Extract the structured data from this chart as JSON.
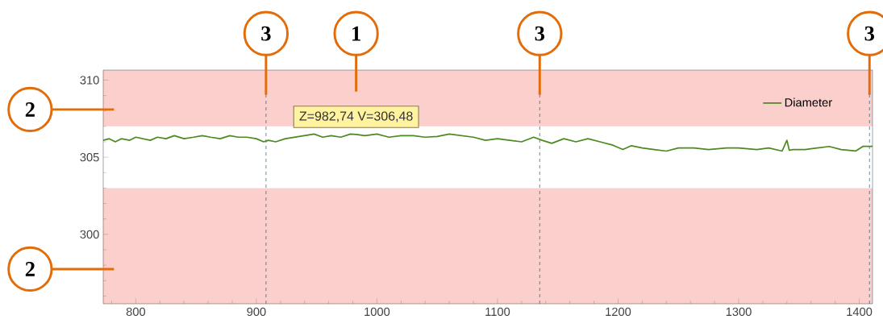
{
  "chart_data": {
    "type": "line",
    "x": [
      773,
      778,
      783,
      788,
      795,
      800,
      806,
      812,
      818,
      825,
      832,
      840,
      848,
      855,
      862,
      870,
      878,
      885,
      892,
      900,
      906,
      910,
      916,
      924,
      932,
      940,
      948,
      955,
      962,
      970,
      978,
      983,
      990,
      1000,
      1010,
      1020,
      1030,
      1040,
      1050,
      1060,
      1070,
      1080,
      1090,
      1100,
      1110,
      1120,
      1130,
      1137,
      1145,
      1155,
      1165,
      1175,
      1185,
      1195,
      1204,
      1211,
      1220,
      1230,
      1240,
      1250,
      1263,
      1275,
      1290,
      1300,
      1315,
      1325,
      1336,
      1340,
      1342,
      1345,
      1355,
      1365,
      1375,
      1385,
      1397,
      1403,
      1411
    ],
    "series": [
      {
        "name": "Diameter",
        "color": "#4a8a1e",
        "values": [
          306.1,
          306.2,
          306.0,
          306.2,
          306.1,
          306.3,
          306.2,
          306.1,
          306.3,
          306.2,
          306.4,
          306.2,
          306.3,
          306.4,
          306.3,
          306.2,
          306.4,
          306.3,
          306.3,
          306.2,
          306.0,
          306.1,
          306.0,
          306.2,
          306.3,
          306.4,
          306.5,
          306.3,
          306.4,
          306.3,
          306.5,
          306.48,
          306.4,
          306.5,
          306.3,
          306.4,
          306.4,
          306.3,
          306.35,
          306.5,
          306.4,
          306.3,
          306.1,
          306.2,
          306.1,
          306.0,
          306.3,
          306.1,
          305.9,
          306.2,
          306.0,
          306.2,
          306.0,
          305.8,
          305.5,
          305.75,
          305.6,
          305.5,
          305.4,
          305.6,
          305.6,
          305.5,
          305.6,
          305.6,
          305.5,
          305.6,
          305.4,
          306.1,
          305.45,
          305.5,
          305.5,
          305.6,
          305.7,
          305.5,
          305.4,
          305.7,
          305.7
        ]
      }
    ],
    "xlim": [
      773,
      1411
    ],
    "ylim": [
      295.5,
      310.65
    ],
    "xticks": [
      {
        "value": 780,
        "label": null
      },
      800,
      {
        "value": 820,
        "label": null
      },
      {
        "value": 840,
        "label": null
      },
      {
        "value": 860,
        "label": null
      },
      {
        "value": 880,
        "label": null
      },
      900,
      {
        "value": 920,
        "label": null
      },
      {
        "value": 940,
        "label": null
      },
      {
        "value": 960,
        "label": null
      },
      {
        "value": 980,
        "label": null
      },
      1000,
      {
        "value": 1020,
        "label": null
      },
      {
        "value": 1040,
        "label": null
      },
      {
        "value": 1060,
        "label": null
      },
      {
        "value": 1080,
        "label": null
      },
      1100,
      {
        "value": 1120,
        "label": null
      },
      {
        "value": 1140,
        "label": null
      },
      {
        "value": 1160,
        "label": null
      },
      {
        "value": 1180,
        "label": null
      },
      1200,
      {
        "value": 1220,
        "label": null
      },
      {
        "value": 1240,
        "label": null
      },
      {
        "value": 1260,
        "label": null
      },
      {
        "value": 1280,
        "label": null
      },
      1300,
      {
        "value": 1320,
        "label": null
      },
      {
        "value": 1340,
        "label": null
      },
      {
        "value": 1360,
        "label": null
      },
      {
        "value": 1380,
        "label": null
      },
      1400
    ],
    "yticks": [
      {
        "value": 296,
        "label": null
      },
      {
        "value": 297,
        "label": null
      },
      {
        "value": 298,
        "label": null
      },
      {
        "value": 299,
        "label": null
      },
      300,
      {
        "value": 301,
        "label": null
      },
      {
        "value": 302,
        "label": null
      },
      {
        "value": 303,
        "label": null
      },
      {
        "value": 304,
        "label": null
      },
      305,
      {
        "value": 306,
        "label": null
      },
      {
        "value": 307,
        "label": null
      },
      {
        "value": 308,
        "label": null
      },
      {
        "value": 309,
        "label": null
      },
      310
    ],
    "bands": [
      {
        "axis": "y",
        "from": 307,
        "to": 310.65,
        "color": "#fbcfcc"
      },
      {
        "axis": "y",
        "from": 295.5,
        "to": 303,
        "color": "#fbcfcc"
      }
    ],
    "ref_lines": [
      {
        "axis": "x",
        "value": 908,
        "color": "#2f6f8f",
        "line_style": "dashed"
      },
      {
        "axis": "x",
        "value": 1135,
        "color": "#2f6f8f",
        "line_style": "dashed"
      },
      {
        "axis": "x",
        "value": 1408.5,
        "color": "#2f6f8f",
        "line_style": "dashed"
      }
    ],
    "annotations": [
      {
        "text": "Z=982,74 V=306,48",
        "x": 982.74,
        "y": 306.48
      },
      "1",
      "2",
      "2",
      {
        "text": "3",
        "x": 908,
        "y": 309.05
      },
      {
        "text": "3",
        "x": 1135,
        "y": 309.05
      },
      {
        "text": "3",
        "x": 1408.5,
        "y": 309.05
      }
    ],
    "legend": "top right"
  }
}
